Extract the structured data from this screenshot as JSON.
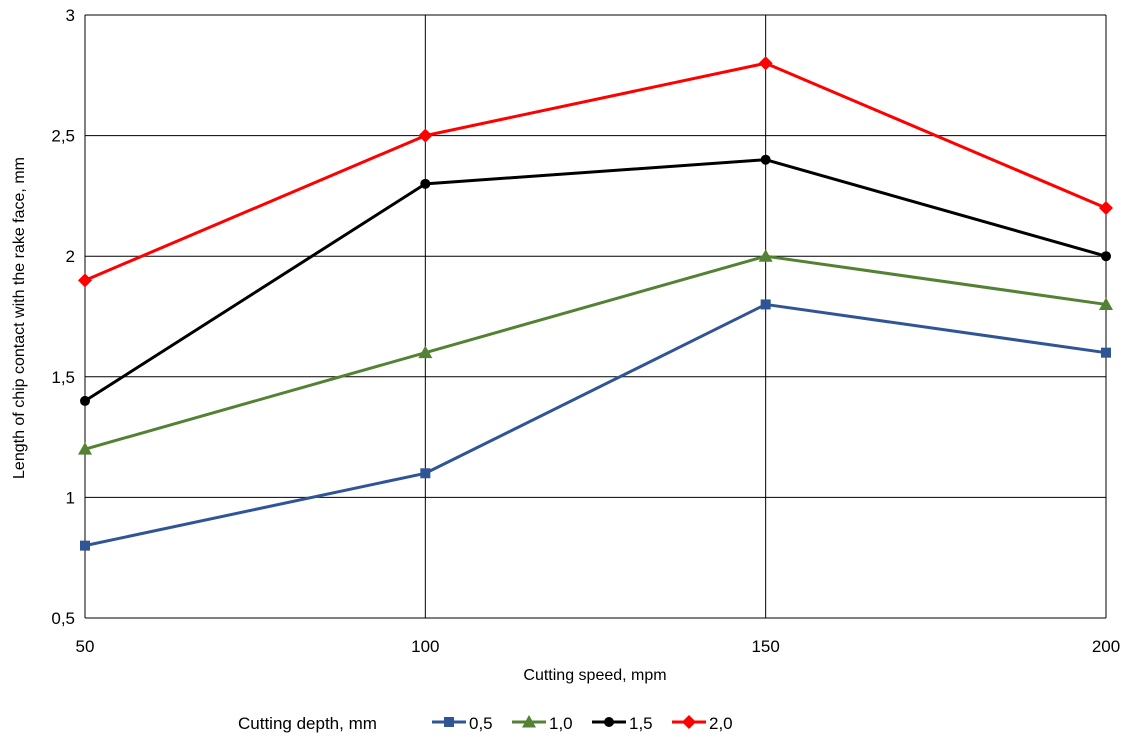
{
  "chart_data": {
    "type": "line",
    "title": "",
    "xlabel": "Cutting speed, mpm",
    "ylabel": "Length of chip contact with the rake face, mm",
    "x": [
      50,
      100,
      150,
      200
    ],
    "x_tick_labels": [
      "50",
      "100",
      "150",
      "200"
    ],
    "ylim": [
      0.5,
      3
    ],
    "y_ticks": [
      0.5,
      1,
      1.5,
      2,
      2.5,
      3
    ],
    "y_tick_labels": [
      "0,5",
      "1",
      "1,5",
      "2",
      "2,5",
      "3"
    ],
    "grid": true,
    "legend_position": "bottom",
    "legend_title": "Cutting depth, mm",
    "series": [
      {
        "name": "0,5",
        "color": "#2f5597",
        "marker": "square",
        "values": [
          0.8,
          1.1,
          1.8,
          1.6
        ]
      },
      {
        "name": "1,0",
        "color": "#548235",
        "marker": "triangle",
        "values": [
          1.2,
          1.6,
          2.0,
          1.8
        ]
      },
      {
        "name": "1,5",
        "color": "#000000",
        "marker": "circle",
        "values": [
          1.4,
          2.3,
          2.4,
          2.0
        ]
      },
      {
        "name": "2,0",
        "color": "#ff0000",
        "marker": "diamond",
        "values": [
          1.9,
          2.5,
          2.8,
          2.2
        ]
      }
    ]
  }
}
